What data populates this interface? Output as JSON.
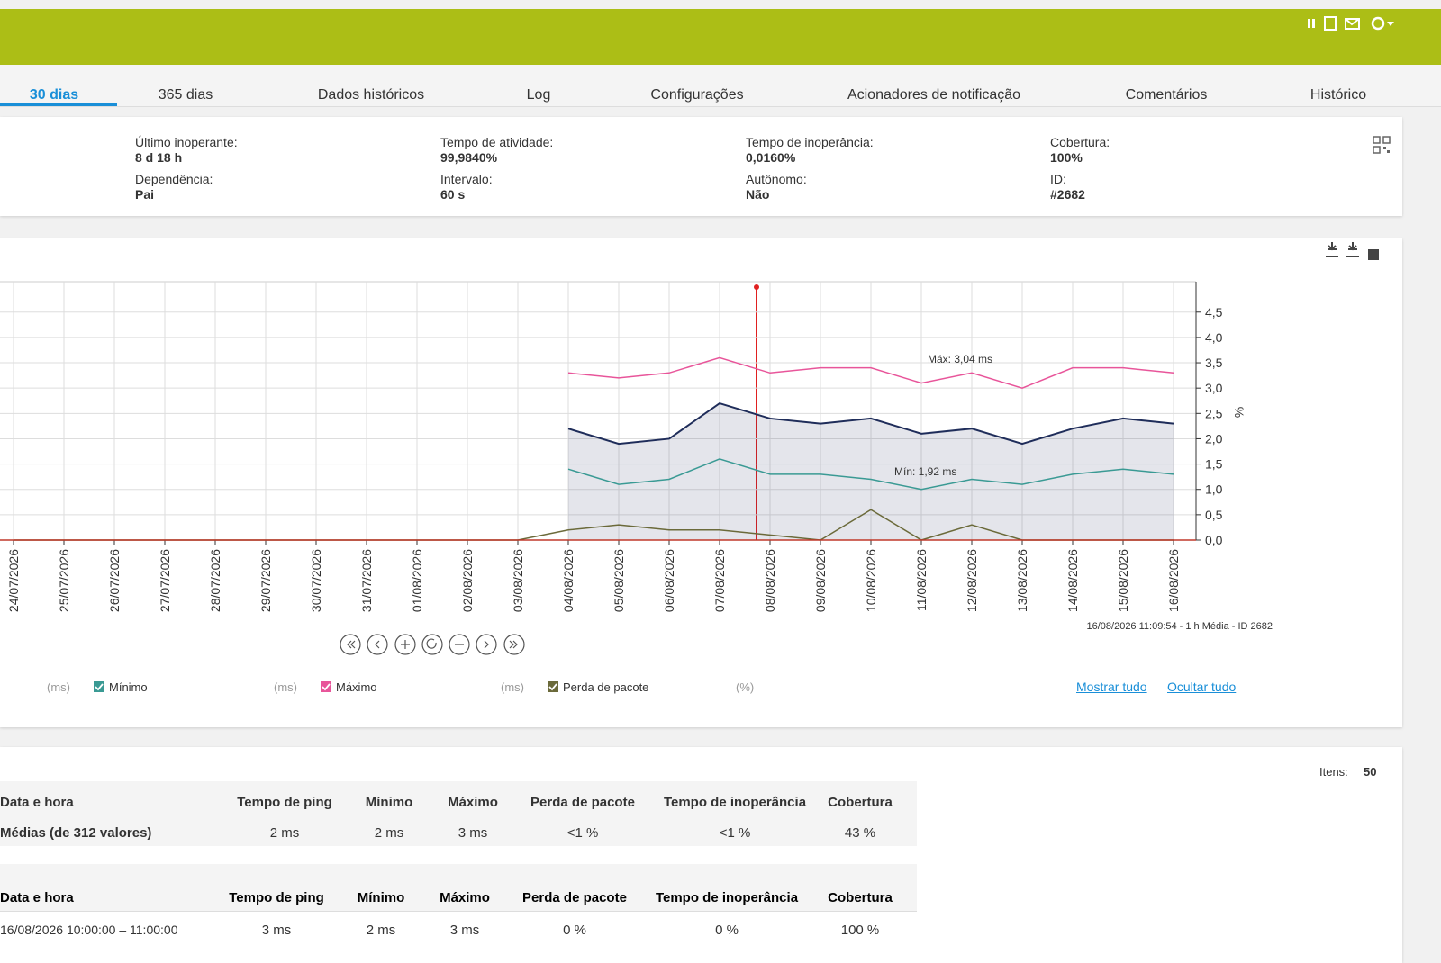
{
  "tabs": [
    "30 dias",
    "365 dias",
    "Dados históricos",
    "Log",
    "Configurações",
    "Acionadores de notificação",
    "Comentários",
    "Histórico"
  ],
  "info": [
    {
      "label": "Último inoperante:",
      "value": "8 d 18 h"
    },
    {
      "label": "Tempo de atividade:",
      "value": "99,9840%"
    },
    {
      "label": "Tempo de inoperância:",
      "value": "0,0160%"
    },
    {
      "label": "Cobertura:",
      "value": "100%"
    },
    {
      "label": "Dependência:",
      "value": "Pai"
    },
    {
      "label": "Intervalo:",
      "value": "60 s"
    },
    {
      "label": "Autônomo:",
      "value": "Não"
    },
    {
      "label": "ID:",
      "value": "#2682"
    }
  ],
  "chart": {
    "type": "line",
    "categories": [
      "24/07/2026",
      "25/07/2026",
      "26/07/2026",
      "27/07/2026",
      "28/07/2026",
      "29/07/2026",
      "30/07/2026",
      "31/07/2026",
      "01/08/2026",
      "02/08/2026",
      "03/08/2026",
      "04/08/2026",
      "05/08/2026",
      "06/08/2026",
      "07/08/2026",
      "08/08/2026",
      "09/08/2026",
      "10/08/2026",
      "11/08/2026",
      "12/08/2026",
      "13/08/2026",
      "14/08/2026",
      "15/08/2026",
      "16/08/2026"
    ],
    "ylim": [
      0,
      5.1
    ],
    "yticks": [
      {
        "value": 0,
        "label": "0,0"
      },
      {
        "value": 0.5,
        "label": "0,5"
      },
      {
        "value": 1,
        "label": "1,0"
      },
      {
        "value": 1.5,
        "label": "1,5"
      },
      {
        "value": 2,
        "label": "2,0"
      },
      {
        "value": 2.5,
        "label": "2,5"
      },
      {
        "value": 3,
        "label": "3,0"
      },
      {
        "value": 3.5,
        "label": "3,5"
      },
      {
        "value": 4,
        "label": "4,0"
      },
      {
        "value": 4.5,
        "label": "4,5"
      }
    ],
    "y_axis_label": "%",
    "grid": true,
    "series": [
      {
        "unit": "(ms)",
        "color": "#1f2d5a",
        "area": true,
        "values": [
          null,
          null,
          null,
          null,
          null,
          null,
          null,
          null,
          null,
          null,
          null,
          2.2,
          1.9,
          2.0,
          2.7,
          2.4,
          2.3,
          2.4,
          2.1,
          2.2,
          1.9,
          2.2,
          2.4,
          2.3
        ]
      },
      {
        "name": "Mínimo",
        "unit": "(ms)",
        "color": "#3a9a94",
        "values": [
          null,
          null,
          null,
          null,
          null,
          null,
          null,
          null,
          null,
          null,
          null,
          1.4,
          1.1,
          1.2,
          1.6,
          1.3,
          1.3,
          1.2,
          1.0,
          1.2,
          1.1,
          1.3,
          1.4,
          1.3
        ]
      },
      {
        "name": "Máximo",
        "unit": "(ms)",
        "color": "#e8559a",
        "values": [
          null,
          null,
          null,
          null,
          null,
          null,
          null,
          null,
          null,
          null,
          null,
          3.3,
          3.2,
          3.3,
          3.6,
          3.3,
          3.4,
          3.4,
          3.1,
          3.3,
          3.0,
          3.4,
          3.4,
          3.3
        ]
      },
      {
        "name": "Perda de pacote",
        "unit": "(%)",
        "color": "#6b6a3a",
        "values": [
          0,
          0,
          0,
          0,
          0,
          0,
          0,
          0,
          0,
          0,
          0,
          0.2,
          0.3,
          0.2,
          0.2,
          0.1,
          0,
          0.6,
          0,
          0.3,
          0,
          0,
          0,
          0
        ]
      }
    ],
    "annotations": [
      "Máx: 3,04 ms",
      "Mín: 1,92 ms"
    ],
    "footer": "16/08/2026 11:09:54 - 1 h Média - ID 2682"
  },
  "legend_links": [
    "Mostrar tudo",
    "Ocultar tudo"
  ],
  "items": {
    "label": "Itens:",
    "value": "50"
  },
  "summary_table": {
    "columns": [
      "Data e hora",
      "Tempo de ping",
      "Mínimo",
      "Máximo",
      "Perda de pacote",
      "Tempo de inoperância",
      "Cobertura"
    ],
    "rows": [
      [
        "Médias (de 312 valores)",
        "2 ms",
        "2 ms",
        "3 ms",
        "<1 %",
        "<1 %",
        "43 %"
      ]
    ]
  },
  "data_table": {
    "columns": [
      "Data e hora",
      "Tempo de ping",
      "Mínimo",
      "Máximo",
      "Perda de pacote",
      "Tempo de inoperância",
      "Cobertura"
    ],
    "rows": [
      [
        "16/08/2026 10:00:00 – 11:00:00",
        "3 ms",
        "2 ms",
        "3 ms",
        "0 %",
        "0 %",
        "100 %"
      ]
    ]
  }
}
